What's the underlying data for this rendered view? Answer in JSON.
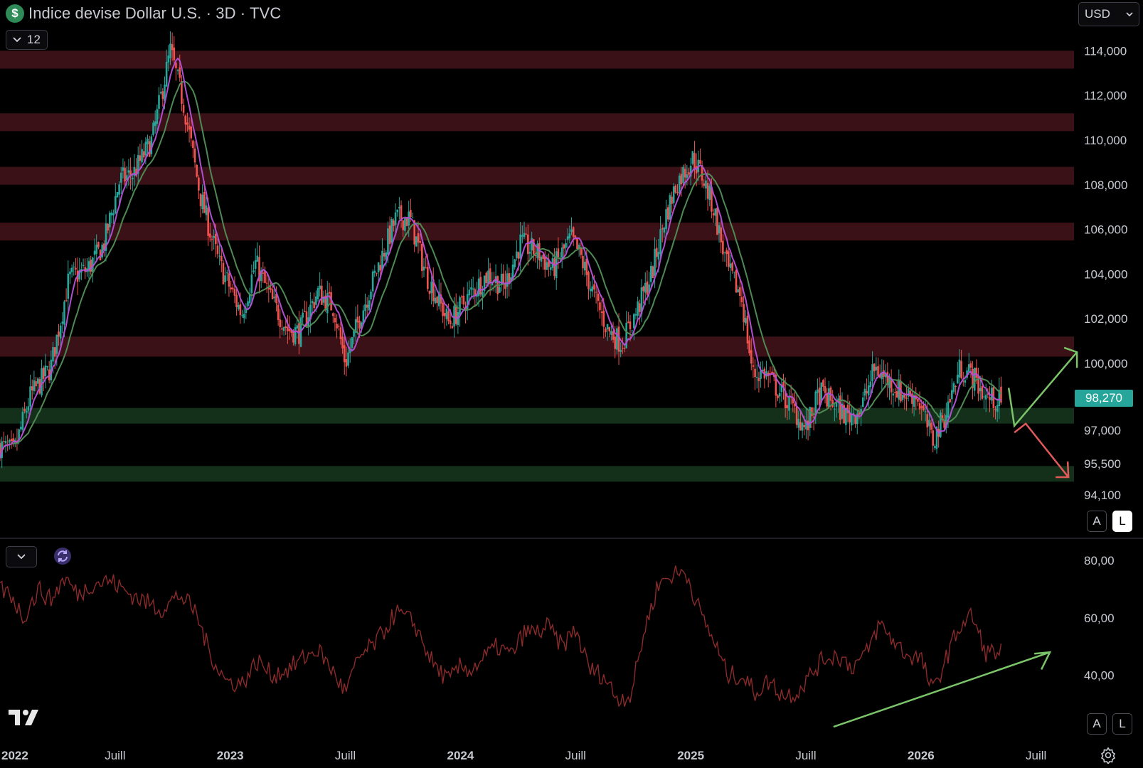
{
  "header": {
    "symbol_icon": "dollar-icon",
    "title": "Indice devise Dollar U.S. · 3D · TVC",
    "indicator_count": "12",
    "currency": "USD"
  },
  "last_price": "98,270",
  "scale_buttons": {
    "auto": "A",
    "log": "L"
  },
  "colors": {
    "up": "#26a69a",
    "down": "#ef5350",
    "ma_fast": "#b04fd0",
    "ma_slow": "#4f8a55",
    "resistance": "#3a1116",
    "support": "#14301a",
    "rsi": "#8b2a2a",
    "arrow_up": "#7bc46a",
    "arrow_down": "#e05a5a"
  },
  "chart_data": [
    {
      "type": "candlestick",
      "title": "Indice devise Dollar U.S. · 3D · TVC",
      "y_ticks": [
        "114,000",
        "112,000",
        "110,000",
        "108,000",
        "106,000",
        "104,000",
        "102,000",
        "100,000",
        "97,000",
        "95,500",
        "94,100"
      ],
      "y_tick_values": [
        114,
        112,
        110,
        108,
        106,
        104,
        102,
        100,
        97,
        95.5,
        94.1
      ],
      "ylim": [
        93.5,
        115
      ],
      "x_ticks": [
        "2022",
        "Juill",
        "2023",
        "Juill",
        "2024",
        "Juill",
        "2025",
        "Juill",
        "2026",
        "Juill"
      ],
      "x_tick_dates": [
        2022.0,
        2022.5,
        2023.0,
        2023.5,
        2024.0,
        2024.5,
        2025.0,
        2025.5,
        2026.0,
        2026.5
      ],
      "x_range": [
        2022.0,
        2026.85
      ],
      "last_price": 98.27,
      "zones": [
        {
          "kind": "resistance",
          "low": 113.2,
          "high": 114.0
        },
        {
          "kind": "resistance",
          "low": 110.4,
          "high": 111.2
        },
        {
          "kind": "resistance",
          "low": 108.0,
          "high": 108.8
        },
        {
          "kind": "resistance",
          "low": 105.5,
          "high": 106.3
        },
        {
          "kind": "resistance",
          "low": 100.3,
          "high": 101.2
        },
        {
          "kind": "support",
          "low": 97.3,
          "high": 98.0
        },
        {
          "kind": "support",
          "low": 94.7,
          "high": 95.4
        }
      ],
      "keypoints": [
        [
          2022.0,
          96.3
        ],
        [
          2022.06,
          96.0
        ],
        [
          2022.13,
          98.5
        ],
        [
          2022.22,
          99.8
        ],
        [
          2022.3,
          103.8
        ],
        [
          2022.38,
          104.2
        ],
        [
          2022.45,
          105.3
        ],
        [
          2022.52,
          108.2
        ],
        [
          2022.58,
          108.5
        ],
        [
          2022.66,
          110.0
        ],
        [
          2022.74,
          114.0
        ],
        [
          2022.8,
          111.5
        ],
        [
          2022.87,
          107.5
        ],
        [
          2022.95,
          104.5
        ],
        [
          2023.05,
          102.2
        ],
        [
          2023.11,
          104.5
        ],
        [
          2023.18,
          102.8
        ],
        [
          2023.25,
          101.5
        ],
        [
          2023.3,
          101.4
        ],
        [
          2023.38,
          103.2
        ],
        [
          2023.45,
          102.5
        ],
        [
          2023.5,
          100.0
        ],
        [
          2023.56,
          102.0
        ],
        [
          2023.63,
          104.0
        ],
        [
          2023.72,
          106.5
        ],
        [
          2023.78,
          106.5
        ],
        [
          2023.85,
          104.0
        ],
        [
          2023.95,
          101.8
        ],
        [
          2024.0,
          102.5
        ],
        [
          2024.05,
          103.2
        ],
        [
          2024.12,
          104.0
        ],
        [
          2024.19,
          103.4
        ],
        [
          2024.26,
          105.4
        ],
        [
          2024.34,
          104.9
        ],
        [
          2024.4,
          104.2
        ],
        [
          2024.48,
          105.6
        ],
        [
          2024.52,
          104.8
        ],
        [
          2024.58,
          103.0
        ],
        [
          2024.64,
          101.5
        ],
        [
          2024.7,
          100.9
        ],
        [
          2024.76,
          102.2
        ],
        [
          2024.83,
          104.0
        ],
        [
          2024.89,
          106.6
        ],
        [
          2024.94,
          108.1
        ],
        [
          2025.01,
          109.2
        ],
        [
          2025.05,
          108.4
        ],
        [
          2025.1,
          106.9
        ],
        [
          2025.16,
          104.2
        ],
        [
          2025.22,
          103.0
        ],
        [
          2025.27,
          99.5
        ],
        [
          2025.32,
          99.6
        ],
        [
          2025.38,
          98.8
        ],
        [
          2025.45,
          97.9
        ],
        [
          2025.5,
          97.0
        ],
        [
          2025.56,
          98.7
        ],
        [
          2025.62,
          98.2
        ],
        [
          2025.68,
          97.6
        ],
        [
          2025.74,
          98.0
        ],
        [
          2025.8,
          99.8
        ],
        [
          2025.86,
          99.2
        ],
        [
          2025.92,
          98.6
        ],
        [
          2025.98,
          98.6
        ],
        [
          2026.05,
          96.5
        ],
        [
          2026.1,
          97.6
        ],
        [
          2026.17,
          99.8
        ],
        [
          2026.22,
          99.5
        ],
        [
          2026.28,
          98.5
        ],
        [
          2026.35,
          98.27
        ]
      ]
    },
    {
      "type": "line",
      "y_ticks": [
        "80,00",
        "60,00",
        "40,00"
      ],
      "y_tick_values": [
        80,
        60,
        40
      ],
      "ylim": [
        25,
        85
      ],
      "keypoints": [
        [
          2022.0,
          70
        ],
        [
          2022.05,
          68
        ],
        [
          2022.1,
          60
        ],
        [
          2022.17,
          70
        ],
        [
          2022.22,
          66
        ],
        [
          2022.28,
          74
        ],
        [
          2022.34,
          68
        ],
        [
          2022.4,
          72
        ],
        [
          2022.48,
          73
        ],
        [
          2022.55,
          69
        ],
        [
          2022.62,
          66
        ],
        [
          2022.7,
          63
        ],
        [
          2022.78,
          68
        ],
        [
          2022.85,
          62
        ],
        [
          2022.91,
          48
        ],
        [
          2022.98,
          38
        ],
        [
          2023.05,
          37
        ],
        [
          2023.12,
          45
        ],
        [
          2023.18,
          40
        ],
        [
          2023.25,
          42
        ],
        [
          2023.32,
          46
        ],
        [
          2023.38,
          49
        ],
        [
          2023.44,
          42
        ],
        [
          2023.5,
          34
        ],
        [
          2023.56,
          46
        ],
        [
          2023.64,
          52
        ],
        [
          2023.72,
          62
        ],
        [
          2023.8,
          58
        ],
        [
          2023.88,
          44
        ],
        [
          2023.95,
          38
        ],
        [
          2024.0,
          43
        ],
        [
          2024.05,
          42
        ],
        [
          2024.1,
          46
        ],
        [
          2024.16,
          50
        ],
        [
          2024.22,
          47
        ],
        [
          2024.28,
          55
        ],
        [
          2024.34,
          55
        ],
        [
          2024.38,
          57
        ],
        [
          2024.44,
          50
        ],
        [
          2024.5,
          56
        ],
        [
          2024.56,
          42
        ],
        [
          2024.62,
          40
        ],
        [
          2024.68,
          32
        ],
        [
          2024.74,
          33
        ],
        [
          2024.8,
          56
        ],
        [
          2024.86,
          72
        ],
        [
          2024.92,
          75
        ],
        [
          2024.98,
          76
        ],
        [
          2025.04,
          62
        ],
        [
          2025.1,
          52
        ],
        [
          2025.16,
          40
        ],
        [
          2025.22,
          40
        ],
        [
          2025.28,
          34
        ],
        [
          2025.34,
          38
        ],
        [
          2025.4,
          33
        ],
        [
          2025.46,
          34
        ],
        [
          2025.52,
          40
        ],
        [
          2025.58,
          46
        ],
        [
          2025.64,
          47
        ],
        [
          2025.7,
          43
        ],
        [
          2025.76,
          47
        ],
        [
          2025.82,
          58
        ],
        [
          2025.88,
          52
        ],
        [
          2025.94,
          47
        ],
        [
          2026.0,
          46
        ],
        [
          2026.05,
          34
        ],
        [
          2026.1,
          44
        ],
        [
          2026.16,
          56
        ],
        [
          2026.22,
          61
        ],
        [
          2026.28,
          48
        ],
        [
          2026.35,
          48
        ]
      ]
    }
  ]
}
